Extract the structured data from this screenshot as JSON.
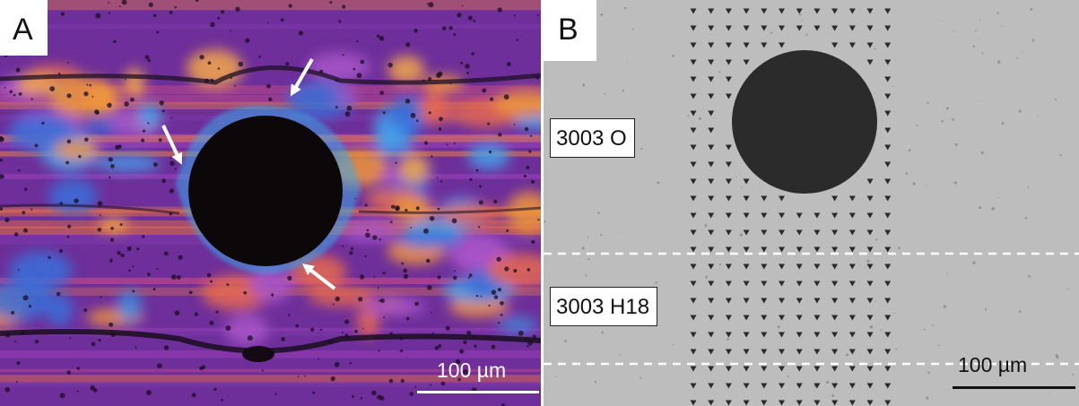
{
  "figure": {
    "panel_a": {
      "letter": "A",
      "scale_label": "100 µm",
      "colors": {
        "base": "#6e2f9a",
        "orange": "#f0973a",
        "blue": "#3f8de0",
        "hole": "#0c0708",
        "arrow": "#ffffff"
      },
      "arrow_count": 3
    },
    "panel_b": {
      "letter": "B",
      "scale_label": "100 µm",
      "labels": {
        "upper": "3003 O",
        "lower": "3003 H18"
      },
      "colors": {
        "background": "#bdbdbd",
        "hole": "#2b2b2b",
        "indent": "#2a2a2a",
        "divider": "#ffffff"
      }
    }
  }
}
